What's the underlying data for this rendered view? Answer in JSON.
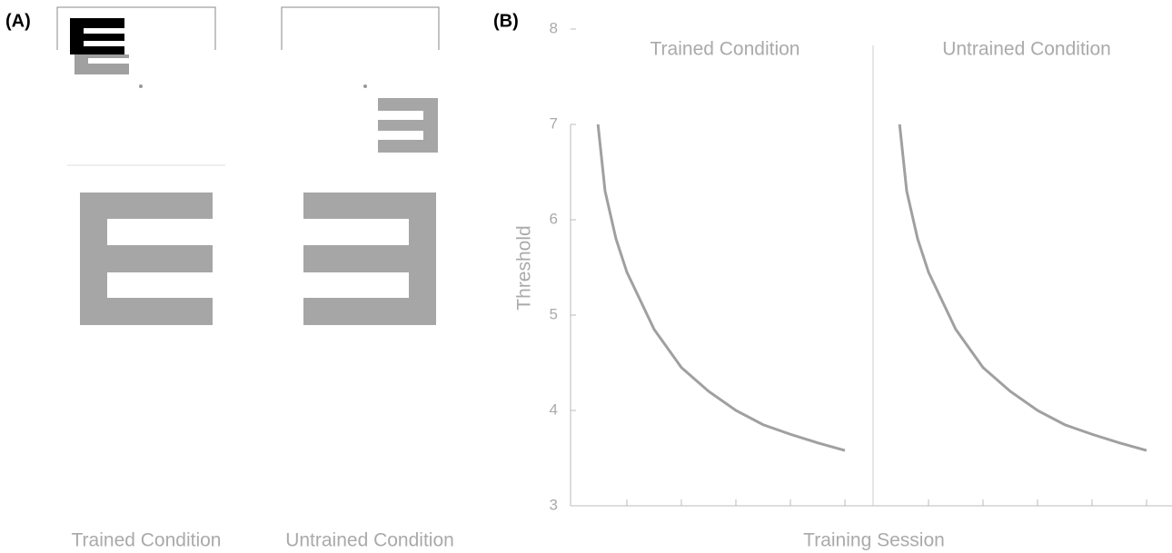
{
  "panel_a": {
    "label": "(A)",
    "captions": [
      "Trained Condition",
      "Untrained Condition"
    ]
  },
  "chart_data": {
    "type": "line",
    "label": "(B)",
    "xlabel": "Training Session",
    "ylabel": "Threshold",
    "ylim": [
      3,
      8
    ],
    "yticks": [
      3,
      4,
      5,
      6,
      7,
      8
    ],
    "panels": [
      {
        "title": "Trained Condition",
        "xlim": [
          0,
          5.5
        ],
        "xticks": [
          1,
          2,
          3,
          4,
          5
        ],
        "color": "#a0a0a0",
        "x": [
          0.47,
          0.6,
          0.8,
          1,
          1.5,
          2,
          2.5,
          3,
          3.5,
          4,
          4.5,
          5
        ],
        "values": [
          7,
          6.3,
          5.8,
          5.45,
          4.85,
          4.45,
          4.2,
          4.0,
          3.85,
          3.75,
          3.66,
          3.58
        ]
      },
      {
        "title": "Untrained Condition",
        "xlim": [
          0,
          5.5
        ],
        "xticks": [
          1,
          2,
          3,
          4,
          5
        ],
        "color": "#a0a0a0",
        "x": [
          0.47,
          0.6,
          0.8,
          1,
          1.5,
          2,
          2.5,
          3,
          3.5,
          4,
          4.5,
          5
        ],
        "values": [
          7,
          6.3,
          5.8,
          5.45,
          4.85,
          4.45,
          4.2,
          4.0,
          3.85,
          3.75,
          3.66,
          3.58
        ]
      }
    ]
  }
}
